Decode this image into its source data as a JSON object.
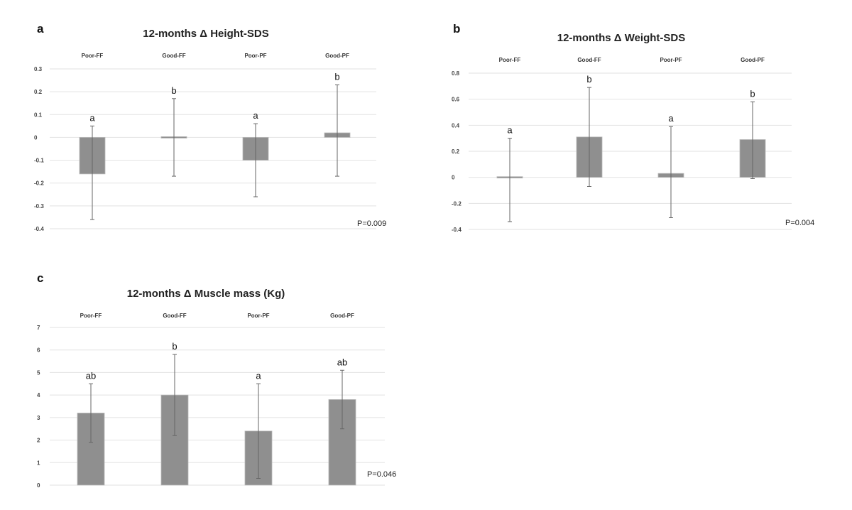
{
  "chart_data": [
    {
      "panel": "a",
      "type": "bar",
      "title": "12-months Δ Height-SDS",
      "categories": [
        "Poor-FF",
        "Good-FF",
        "Poor-PF",
        "Good-PF"
      ],
      "values": [
        -0.16,
        0.0,
        -0.1,
        0.02
      ],
      "error_low": [
        -0.36,
        -0.17,
        -0.26,
        -0.17
      ],
      "error_high": [
        0.05,
        0.17,
        0.06,
        0.23
      ],
      "significance": [
        "a",
        "b",
        "a",
        "b"
      ],
      "yticks": [
        "0.3",
        "0.2",
        "0.1",
        "0",
        "-0.1",
        "-0.2",
        "-0.3",
        "-0.4"
      ],
      "ylim": [
        -0.4,
        0.3
      ],
      "p_value": "P=0.009",
      "grid": true
    },
    {
      "panel": "b",
      "type": "bar",
      "title": "12-months Δ Weight-SDS",
      "categories": [
        "Poor-FF",
        "Good-FF",
        "Poor-PF",
        "Good-PF"
      ],
      "values": [
        -0.01,
        0.31,
        0.03,
        0.29
      ],
      "error_low": [
        -0.34,
        -0.07,
        -0.31,
        -0.01
      ],
      "error_high": [
        0.3,
        0.69,
        0.39,
        0.58
      ],
      "significance": [
        "a",
        "b",
        "a",
        "b"
      ],
      "yticks": [
        "0.8",
        "0.6",
        "0.4",
        "0.2",
        "0",
        "-0.2",
        "-0.4"
      ],
      "ylim": [
        -0.4,
        0.8
      ],
      "p_value": "P=0.004",
      "grid": true
    },
    {
      "panel": "c",
      "type": "bar",
      "title": "12-months Δ Muscle mass (Kg)",
      "categories": [
        "Poor-FF",
        "Good-FF",
        "Poor-PF",
        "Good-PF"
      ],
      "values": [
        3.2,
        4.0,
        2.4,
        3.8
      ],
      "error_low": [
        1.9,
        2.2,
        0.3,
        2.5
      ],
      "error_high": [
        4.5,
        5.8,
        4.5,
        5.1
      ],
      "significance": [
        "ab",
        "b",
        "a",
        "ab"
      ],
      "yticks": [
        "7",
        "6",
        "5",
        "4",
        "3",
        "2",
        "1",
        "0"
      ],
      "ylim": [
        0,
        7
      ],
      "p_value": "P=0.046",
      "grid": true
    }
  ]
}
